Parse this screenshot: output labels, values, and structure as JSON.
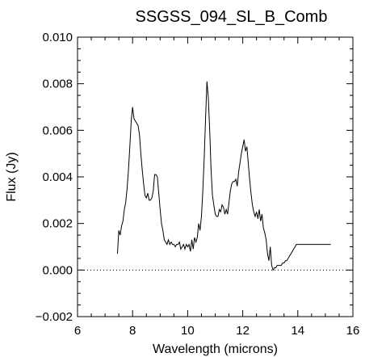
{
  "chart_data": {
    "type": "line",
    "title": "SSGSS_094_SL_B_Comb",
    "xlabel": "Wavelength (microns)",
    "ylabel": "Flux (Jy)",
    "xlim": [
      6,
      16
    ],
    "ylim": [
      -0.002,
      0.01
    ],
    "xticks": [
      6,
      8,
      10,
      12,
      14,
      16
    ],
    "xtick_labels": [
      "6",
      "8",
      "10",
      "12",
      "14",
      "16"
    ],
    "yticks": [
      -0.002,
      0.0,
      0.002,
      0.004,
      0.006,
      0.008,
      0.01
    ],
    "ytick_labels": [
      "−0.002",
      "0.000",
      "0.002",
      "0.004",
      "0.006",
      "0.008",
      "0.010"
    ],
    "grid": false,
    "reference_line": {
      "y": 0.0,
      "style": "dotted"
    },
    "series": [
      {
        "x": [
          7.45,
          7.5,
          7.55,
          7.6,
          7.65,
          7.7,
          7.75,
          7.8,
          7.85,
          7.9,
          7.95,
          8.0,
          8.05,
          8.1,
          8.15,
          8.2,
          8.25,
          8.3,
          8.35,
          8.4,
          8.45,
          8.5,
          8.55,
          8.6,
          8.65,
          8.7,
          8.75,
          8.8,
          8.85,
          8.9,
          8.95,
          9.0,
          9.05,
          9.1,
          9.15,
          9.2,
          9.25,
          9.3,
          9.35,
          9.4,
          9.45,
          9.5,
          9.55,
          9.6,
          9.65,
          9.7,
          9.75,
          9.8,
          9.85,
          9.9,
          9.95,
          10.0,
          10.05,
          10.1,
          10.15,
          10.2,
          10.25,
          10.3,
          10.35,
          10.4,
          10.45,
          10.5,
          10.55,
          10.6,
          10.65,
          10.7,
          10.75,
          10.8,
          10.85,
          10.9,
          10.95,
          11.0,
          11.05,
          11.1,
          11.15,
          11.2,
          11.25,
          11.3,
          11.35,
          11.4,
          11.45,
          11.5,
          11.55,
          11.6,
          11.65,
          11.7,
          11.75,
          11.8,
          11.85,
          11.9,
          11.95,
          12.0,
          12.05,
          12.1,
          12.15,
          12.2,
          12.25,
          12.3,
          12.35,
          12.4,
          12.45,
          12.5,
          12.55,
          12.6,
          12.65,
          12.7,
          12.75,
          12.8,
          12.85,
          12.9,
          12.95,
          13.0,
          13.05,
          13.1,
          13.15,
          13.2,
          13.25,
          13.3,
          13.35,
          13.4,
          13.45,
          13.5,
          13.55,
          13.6,
          13.65,
          13.7,
          13.75,
          13.8,
          13.85,
          13.9,
          13.95,
          14.0,
          14.05,
          14.1,
          14.15,
          14.2,
          14.25,
          14.3,
          14.35,
          14.4,
          14.45,
          14.5,
          14.55,
          14.6,
          14.65,
          14.7,
          14.75,
          14.8,
          14.85,
          14.9,
          14.95,
          15.0,
          15.05,
          15.1,
          15.15,
          15.2
        ],
        "values": [
          0.0007,
          0.0017,
          0.0015,
          0.0019,
          0.0021,
          0.0026,
          0.0029,
          0.0035,
          0.0043,
          0.0053,
          0.0064,
          0.007,
          0.0065,
          0.0064,
          0.0063,
          0.0062,
          0.0058,
          0.005,
          0.0043,
          0.0037,
          0.0032,
          0.0031,
          0.0033,
          0.003,
          0.003,
          0.0031,
          0.0034,
          0.0041,
          0.0041,
          0.004,
          0.0033,
          0.0026,
          0.002,
          0.0017,
          0.0013,
          0.0012,
          0.0011,
          0.0013,
          0.0011,
          0.0012,
          0.0011,
          0.0011,
          0.001,
          0.0011,
          0.0011,
          0.0012,
          0.0009,
          0.001,
          0.0011,
          0.0009,
          0.0011,
          0.001,
          0.0011,
          0.0008,
          0.0013,
          0.0009,
          0.0014,
          0.0012,
          0.0014,
          0.002,
          0.0017,
          0.0023,
          0.0034,
          0.0048,
          0.0065,
          0.0081,
          0.0074,
          0.006,
          0.0043,
          0.0032,
          0.0028,
          0.0024,
          0.0023,
          0.0023,
          0.0026,
          0.0025,
          0.0028,
          0.0027,
          0.0024,
          0.0026,
          0.0024,
          0.0029,
          0.0034,
          0.0037,
          0.0038,
          0.0038,
          0.0039,
          0.0036,
          0.0042,
          0.0046,
          0.005,
          0.0053,
          0.0056,
          0.0051,
          0.0053,
          0.0046,
          0.0039,
          0.0033,
          0.0028,
          0.0025,
          0.0023,
          0.0025,
          0.0022,
          0.0026,
          0.0021,
          0.0024,
          0.0018,
          0.0016,
          0.0013,
          0.0007,
          0.0004,
          0.001,
          0.0002,
          0.0,
          0.0001,
          0.0001,
          0.0002,
          0.0002,
          0.0002,
          0.0002,
          0.0003,
          0.0003,
          0.0004,
          0.0004,
          0.0005,
          0.0006,
          0.0007,
          0.0008,
          0.0009,
          0.001,
          0.0011,
          0.0011,
          0.0011,
          0.0011,
          0.0011,
          0.0011,
          0.0011,
          0.0011,
          0.0011,
          0.0011,
          0.0011,
          0.0011,
          0.0011,
          0.0011,
          0.0011,
          0.0011,
          0.0011,
          0.0011,
          0.0011,
          0.0011,
          0.0011,
          0.0011,
          0.0011,
          0.0011,
          0.0011,
          0.0011
        ]
      }
    ]
  }
}
